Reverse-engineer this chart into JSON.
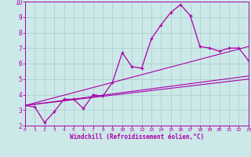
{
  "xlabel": "Windchill (Refroidissement éolien,°C)",
  "xlim": [
    0,
    23
  ],
  "ylim": [
    2,
    10
  ],
  "xticks": [
    0,
    1,
    2,
    3,
    4,
    5,
    6,
    7,
    8,
    9,
    10,
    11,
    12,
    13,
    14,
    15,
    16,
    17,
    18,
    19,
    20,
    21,
    22,
    23
  ],
  "yticks": [
    2,
    3,
    4,
    5,
    6,
    7,
    8,
    9,
    10
  ],
  "background_color": "#cce8e8",
  "grid_color": "#aacccc",
  "line_color": "#aa00aa",
  "series1_x": [
    0,
    1,
    2,
    3,
    4,
    5,
    6,
    7,
    8,
    9,
    10,
    11,
    12,
    13,
    14,
    15,
    16,
    17,
    18,
    19,
    20,
    21,
    22,
    23
  ],
  "series1_y": [
    3.3,
    3.2,
    2.2,
    2.9,
    3.7,
    3.7,
    3.1,
    4.0,
    3.9,
    4.8,
    6.7,
    5.8,
    5.7,
    7.6,
    8.5,
    9.3,
    9.8,
    9.1,
    7.1,
    7.0,
    6.8,
    7.0,
    7.0,
    6.2
  ],
  "series2_x": [
    0,
    23
  ],
  "series2_y": [
    3.3,
    5.2
  ],
  "series3_x": [
    0,
    23
  ],
  "series3_y": [
    3.3,
    7.1
  ],
  "series4_x": [
    0,
    23
  ],
  "series4_y": [
    3.3,
    5.0
  ]
}
